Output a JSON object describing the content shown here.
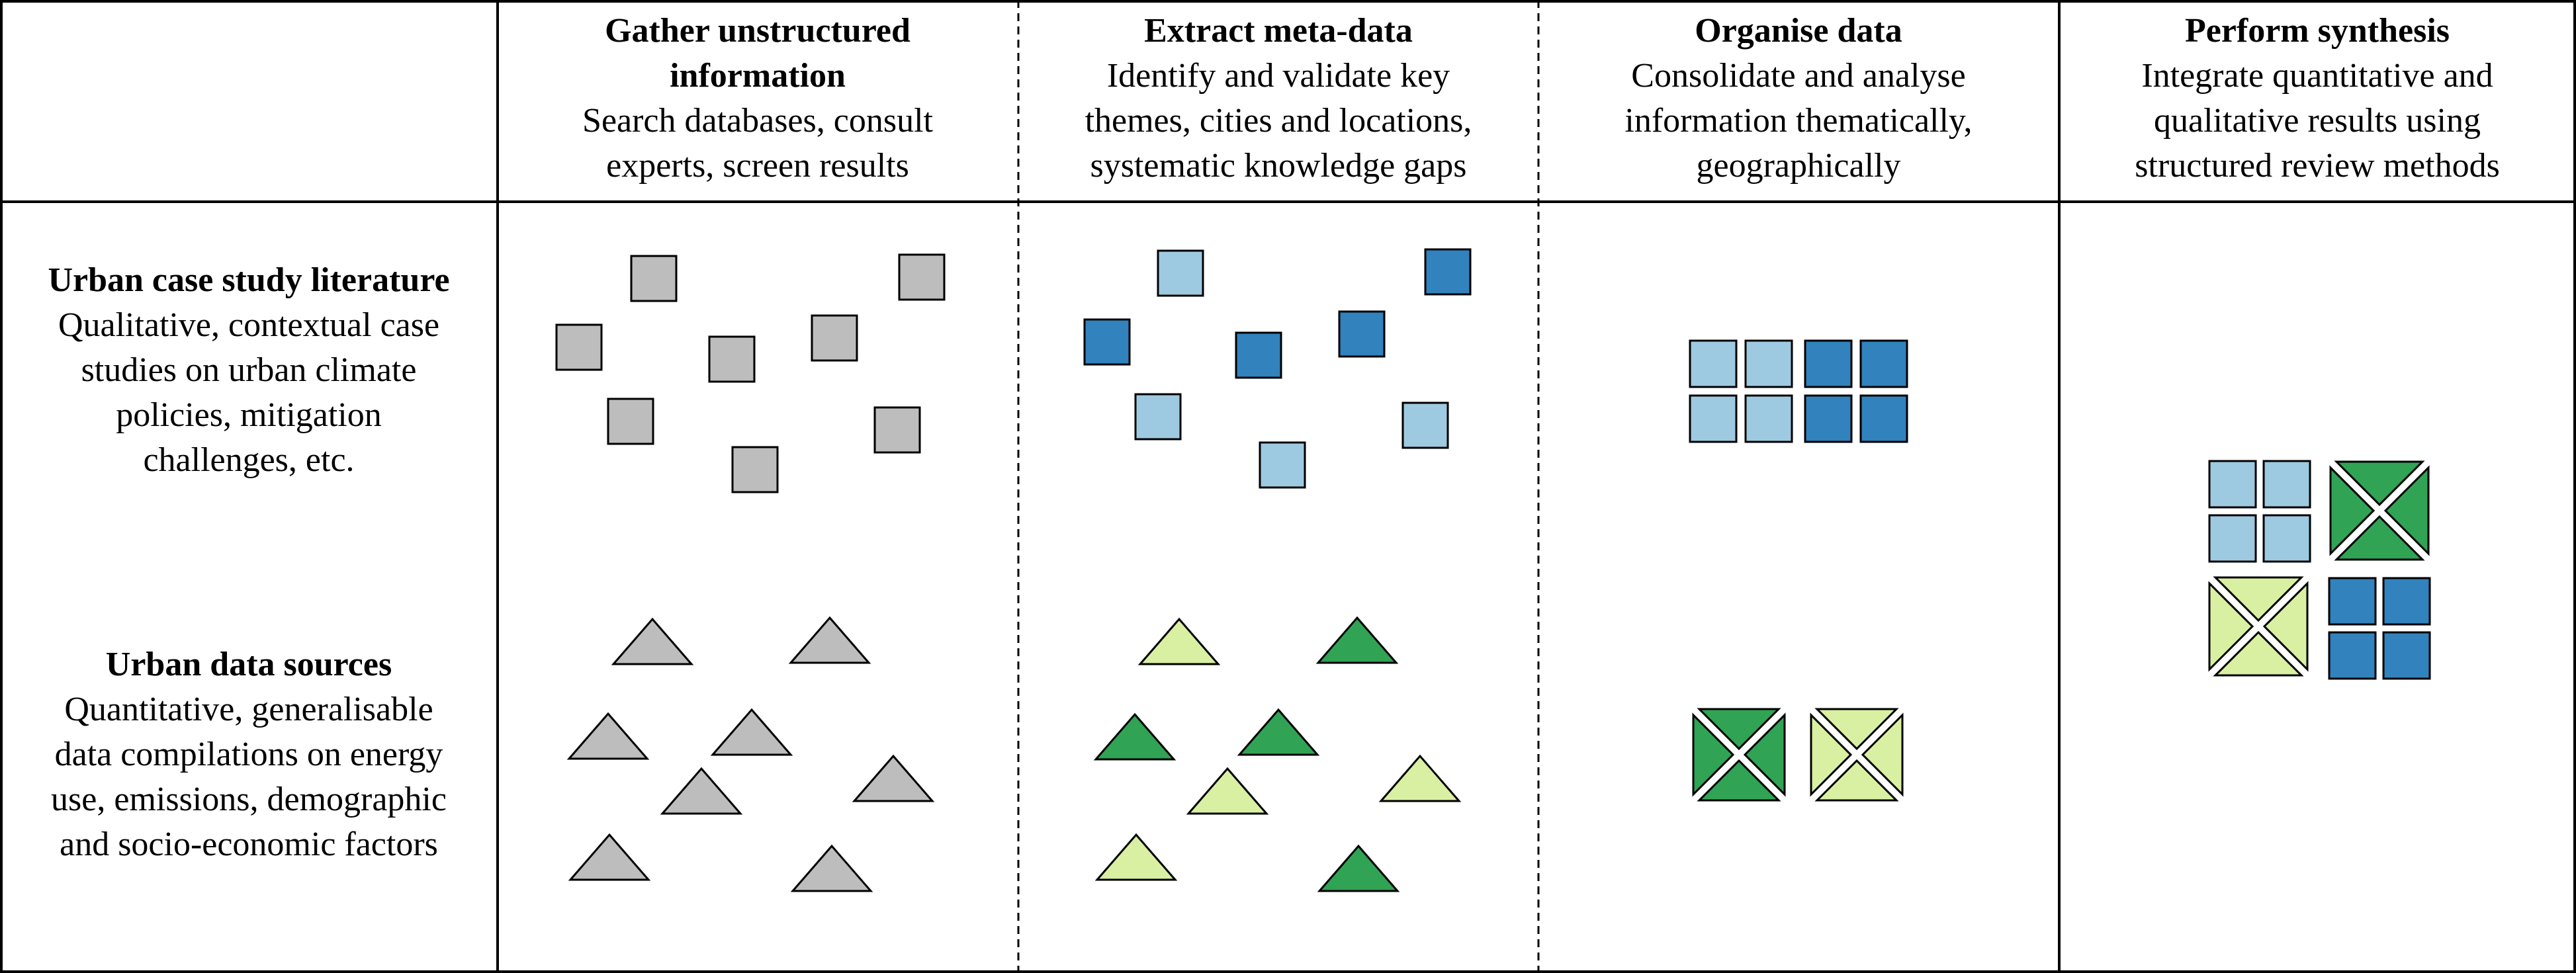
{
  "colors": {
    "grey": "#bdbdbd",
    "light_blue": "#9ecae1",
    "dark_blue": "#3182bd",
    "light_green": "#d9f0a3",
    "dark_green": "#31a354",
    "stroke": "#000000"
  },
  "columns": [
    {
      "title_lines": [
        "Gather unstructured",
        "information"
      ],
      "desc_lines": [
        "Search databases, consult",
        "experts, screen results"
      ]
    },
    {
      "title_lines": [
        "Extract meta-data"
      ],
      "desc_lines": [
        "Identify and validate key",
        "themes, cities and locations,",
        "systematic knowledge gaps"
      ]
    },
    {
      "title_lines": [
        "Organise data"
      ],
      "desc_lines": [
        "Consolidate and analyse",
        "information thematically,",
        "geographically"
      ]
    },
    {
      "title_lines": [
        "Perform synthesis"
      ],
      "desc_lines": [
        "Integrate quantitative and",
        "qualitative results using",
        "structured review methods"
      ]
    }
  ],
  "rows": [
    {
      "title": "Urban case study literature",
      "desc_lines": [
        "Qualitative, contextual case",
        "studies on urban climate",
        "policies, mitigation",
        "challenges, etc."
      ]
    },
    {
      "title": "Urban data sources",
      "desc_lines": [
        "Quantitative, generalisable",
        "data compilations on energy",
        "use, emissions, demographic",
        "and socio-economic factors"
      ]
    }
  ]
}
